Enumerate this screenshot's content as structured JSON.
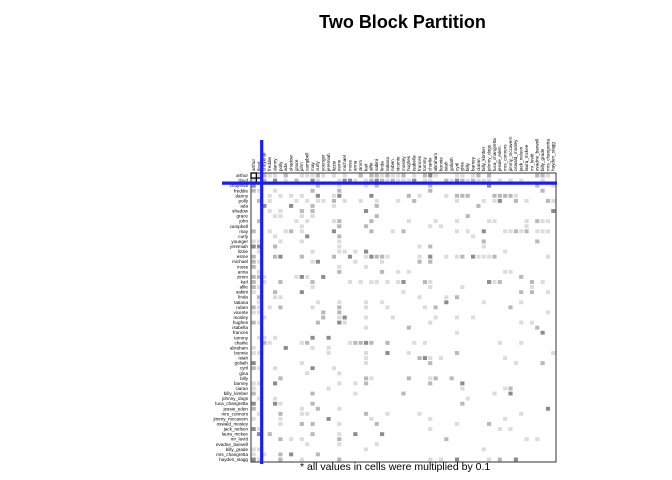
{
  "chart_data": {
    "type": "heatmap",
    "title": "Two Block Partition",
    "note": "* all values in cells were multiplied by 0.1",
    "block1": [
      "arthur",
      "lloyd"
    ],
    "block2": [
      "chuyendi",
      "freddie",
      "danny",
      "polly",
      "ada",
      "shadow",
      "grace",
      "john",
      "campbell",
      "may",
      "curly",
      "younger",
      "jeremiah",
      "lizzie",
      "esme",
      "michael",
      "moss",
      "anna",
      "zimm",
      "karl",
      "alfie",
      "sabini",
      "linda",
      "tatiana",
      "ruben",
      "vicente",
      "mosley",
      "hughes",
      "isabella",
      "frances",
      "tommy",
      "charlie",
      "abraham",
      "bonnie",
      "isiah",
      "goliath",
      "cyril",
      "gina",
      "billy",
      "barney",
      "ciaran",
      "billy_kimber",
      "johnny_dogs",
      "luca_changretta",
      "jessie_eden",
      "mrs_connors",
      "jimmy_mccavern",
      "oswald_mosley",
      "jack_nelson",
      "laura_mckee",
      "mr_levitt",
      "evadne_barwell",
      "billy_grade",
      "mrs_changretta",
      "hayden_stagg"
    ],
    "colors": {
      "divider": "#1a1aff",
      "cell_dark": "#8c8c8c",
      "cell_mid": "#b8b8b8",
      "cell_light": "#dcdcdc"
    }
  }
}
